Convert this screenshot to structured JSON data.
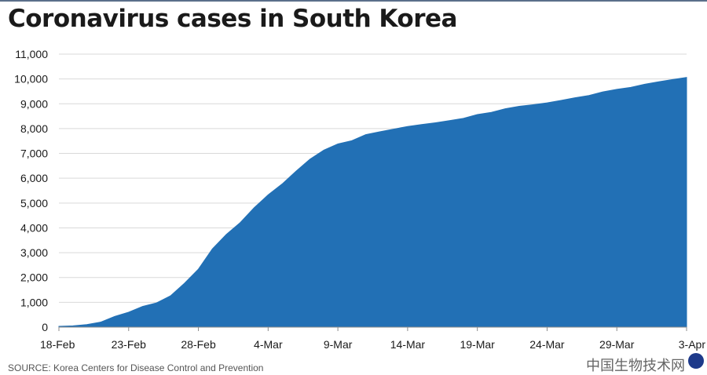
{
  "title": "Coronavirus cases in South Korea",
  "footer": "SOURCE: Korea Centers for Disease Control and Prevention",
  "watermark": "中国生物技术网",
  "colors": {
    "area": "#2270b5",
    "grid": "#d9d9d9",
    "axis": "#8c8c8c"
  },
  "chart_data": {
    "type": "area",
    "title": "Coronavirus cases in South Korea",
    "xlabel": "",
    "ylabel": "",
    "ylim": [
      0,
      11000
    ],
    "yticks": [
      0,
      1000,
      2000,
      3000,
      4000,
      5000,
      6000,
      7000,
      8000,
      9000,
      10000,
      11000
    ],
    "ytick_labels": [
      "0",
      "1,000",
      "2,000",
      "3,000",
      "4,000",
      "5,000",
      "6,000",
      "7,000",
      "8,000",
      "9,000",
      "10,000",
      "11,000"
    ],
    "xticks": [
      "18-Feb",
      "23-Feb",
      "28-Feb",
      "4-Mar",
      "9-Mar",
      "14-Mar",
      "19-Mar",
      "24-Mar",
      "29-Mar",
      "3-Apr"
    ],
    "grid": true,
    "series": [
      {
        "x": [
          "18-Feb",
          "19-Feb",
          "20-Feb",
          "21-Feb",
          "22-Feb",
          "23-Feb",
          "24-Feb",
          "25-Feb",
          "26-Feb",
          "27-Feb",
          "28-Feb",
          "29-Feb",
          "1-Mar",
          "2-Mar",
          "3-Mar",
          "4-Mar",
          "5-Mar",
          "6-Mar",
          "7-Mar",
          "8-Mar",
          "9-Mar",
          "10-Mar",
          "11-Mar",
          "12-Mar",
          "13-Mar",
          "14-Mar",
          "15-Mar",
          "16-Mar",
          "17-Mar",
          "18-Mar",
          "19-Mar",
          "20-Mar",
          "21-Mar",
          "22-Mar",
          "23-Mar",
          "24-Mar",
          "25-Mar",
          "26-Mar",
          "27-Mar",
          "28-Mar",
          "29-Mar",
          "30-Mar",
          "31-Mar",
          "1-Apr",
          "2-Apr",
          "3-Apr"
        ],
        "values": [
          31,
          51,
          104,
          204,
          433,
          602,
          833,
          977,
          1261,
          1766,
          2337,
          3150,
          3736,
          4212,
          4812,
          5328,
          5766,
          6284,
          6767,
          7134,
          7382,
          7513,
          7755,
          7869,
          7979,
          8086,
          8162,
          8236,
          8320,
          8413,
          8565,
          8652,
          8799,
          8897,
          8961,
          9037,
          9137,
          9241,
          9332,
          9478,
          9583,
          9661,
          9786,
          9887,
          9976,
          10062
        ]
      }
    ]
  }
}
